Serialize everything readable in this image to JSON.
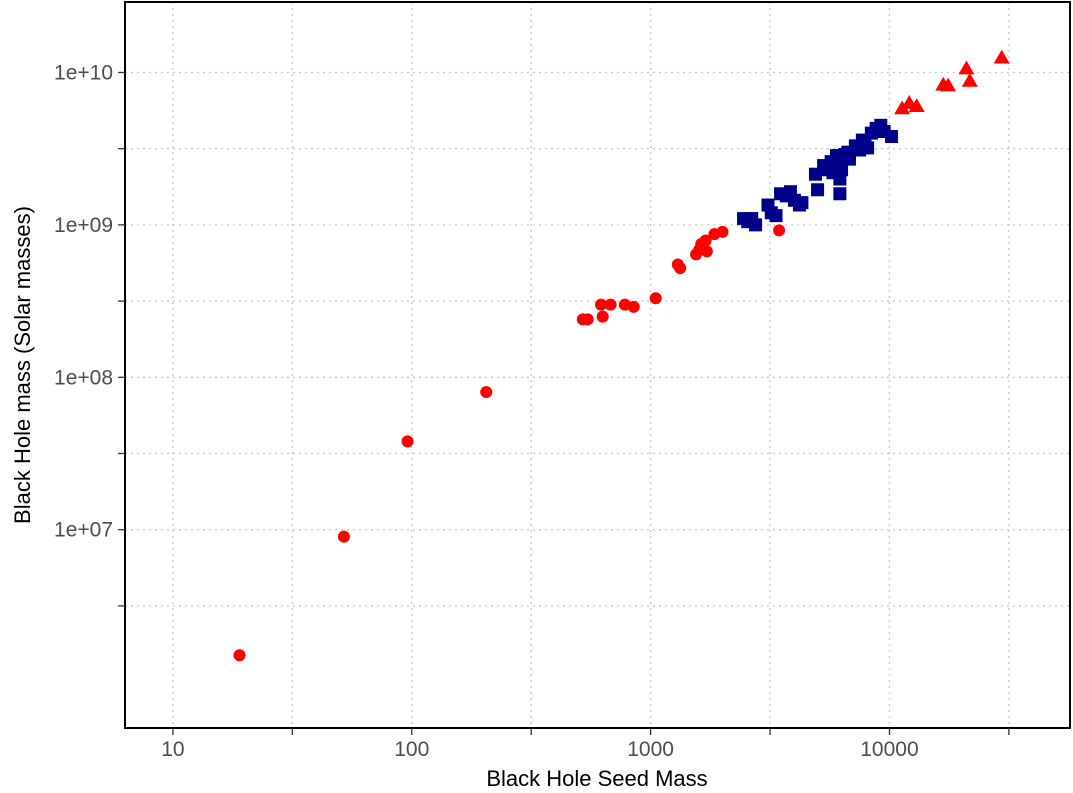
{
  "chart_data": {
    "type": "scatter",
    "title": "",
    "xlabel": "Black Hole Seed Mass",
    "ylabel": "Black Hole mass (Solar masses)",
    "x_scale": "log10",
    "y_scale": "log10",
    "xlim": [
      6.3,
      57000
    ],
    "ylim": [
      500000,
      29000000000
    ],
    "x_ticks": [
      {
        "value": 10,
        "label": "10"
      },
      {
        "value": 100,
        "label": "100"
      },
      {
        "value": 1000,
        "label": "1000"
      },
      {
        "value": 10000,
        "label": "10000"
      }
    ],
    "y_ticks": [
      {
        "value": 10000000,
        "label": "1e+07"
      },
      {
        "value": 100000000,
        "label": "1e+08"
      },
      {
        "value": 1000000000,
        "label": "1e+09"
      },
      {
        "value": 10000000000,
        "label": "1e+10"
      }
    ],
    "grid": true,
    "legend": false,
    "series": [
      {
        "color": "#ff0000",
        "shape": "circle",
        "points": [
          [
            19,
            1500000
          ],
          [
            52,
            9000000
          ],
          [
            96,
            38000000
          ],
          [
            205,
            80000000
          ],
          [
            520,
            240000000
          ],
          [
            545,
            240000000
          ],
          [
            620,
            300000000
          ],
          [
            630,
            250000000
          ],
          [
            680,
            300000000
          ],
          [
            780,
            300000000
          ],
          [
            850,
            290000000
          ],
          [
            1050,
            330000000
          ],
          [
            1300,
            550000000
          ],
          [
            1330,
            520000000
          ],
          [
            1550,
            640000000
          ],
          [
            1600,
            690000000
          ],
          [
            1630,
            750000000
          ],
          [
            1700,
            790000000
          ],
          [
            1720,
            670000000
          ],
          [
            1850,
            870000000
          ],
          [
            2000,
            900000000
          ],
          [
            3450,
            920000000
          ]
        ]
      },
      {
        "color": "#00008b",
        "shape": "square",
        "points": [
          [
            2450,
            1100000000
          ],
          [
            2550,
            1050000000
          ],
          [
            2650,
            1100000000
          ],
          [
            2750,
            1000000000
          ],
          [
            3100,
            1350000000
          ],
          [
            3200,
            1200000000
          ],
          [
            3350,
            1150000000
          ],
          [
            3500,
            1600000000
          ],
          [
            3700,
            1550000000
          ],
          [
            3850,
            1650000000
          ],
          [
            4000,
            1450000000
          ],
          [
            4200,
            1350000000
          ],
          [
            4300,
            1400000000
          ],
          [
            4900,
            2150000000
          ],
          [
            5000,
            1700000000
          ],
          [
            5300,
            2450000000
          ],
          [
            5500,
            2300000000
          ],
          [
            5700,
            2600000000
          ],
          [
            5800,
            2200000000
          ],
          [
            6000,
            2850000000
          ],
          [
            6100,
            2500000000
          ],
          [
            6200,
            2000000000
          ],
          [
            6300,
            2300000000
          ],
          [
            6500,
            2900000000
          ],
          [
            6700,
            3000000000
          ],
          [
            6800,
            2700000000
          ],
          [
            7200,
            3300000000
          ],
          [
            7500,
            3100000000
          ],
          [
            7700,
            3600000000
          ],
          [
            7900,
            3500000000
          ],
          [
            8100,
            3200000000
          ],
          [
            8400,
            4000000000
          ],
          [
            8800,
            4300000000
          ],
          [
            9200,
            4500000000
          ],
          [
            9500,
            4100000000
          ],
          [
            10200,
            3800000000
          ],
          [
            6200,
            1600000000
          ]
        ]
      },
      {
        "color": "#ff0000",
        "shape": "triangle",
        "points": [
          [
            11300,
            5800000000
          ],
          [
            12100,
            6300000000
          ],
          [
            13000,
            6000000000
          ],
          [
            16800,
            8300000000
          ],
          [
            17600,
            8200000000
          ],
          [
            21000,
            10600000000
          ],
          [
            21700,
            8800000000
          ],
          [
            29500,
            12500000000
          ]
        ]
      }
    ]
  }
}
